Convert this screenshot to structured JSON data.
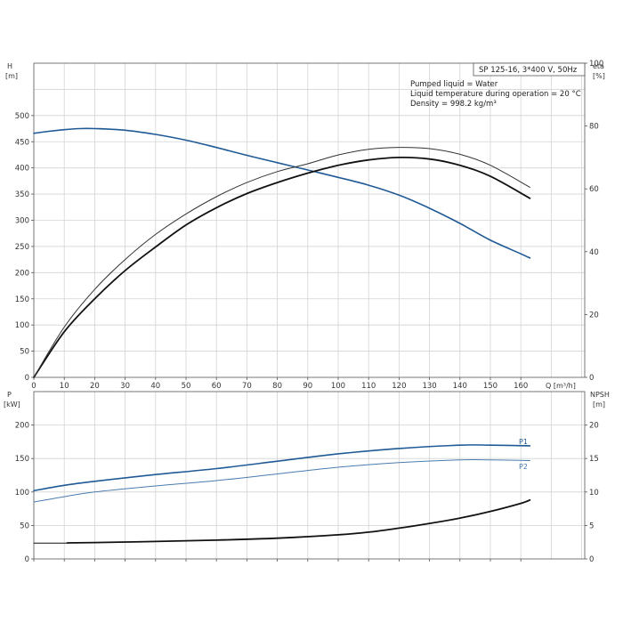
{
  "chart_data": [
    {
      "type": "line",
      "info_box": {
        "model": "SP 125-16, 3*400 V, 50Hz",
        "lines": [
          "Pumped liquid = Water",
          "Liquid temperature during operation = 20 °C",
          "Density = 998.2 kg/m³"
        ]
      },
      "xlabel": "Q [m³/h]",
      "ylabel_left": [
        "H",
        "[m]"
      ],
      "ylabel_right": [
        "eta",
        "[%]"
      ],
      "xlim": [
        0,
        181
      ],
      "ylim_left": [
        0,
        600
      ],
      "ylim_right": [
        0,
        100
      ],
      "x_ticks": [
        0,
        10,
        20,
        30,
        40,
        50,
        60,
        70,
        80,
        90,
        100,
        110,
        120,
        130,
        140,
        150,
        160
      ],
      "y_ticks_left": [
        0,
        50,
        100,
        150,
        200,
        250,
        300,
        350,
        400,
        450,
        500
      ],
      "y_ticks_right": [
        0,
        20,
        40,
        60,
        80,
        100
      ],
      "grid": true,
      "colors": {
        "head": "#1f5a96",
        "eta": "#111111",
        "eta_thin": "#333333"
      },
      "series": [
        {
          "axis": "left",
          "x": [
            0,
            5,
            10,
            15,
            20,
            30,
            40,
            50,
            60,
            70,
            80,
            90,
            100,
            110,
            120,
            130,
            140,
            150,
            160,
            163
          ],
          "values": [
            466,
            470,
            473,
            475,
            475,
            472,
            464,
            453,
            439,
            424,
            410,
            396,
            382,
            367,
            348,
            323,
            294,
            262,
            236,
            228
          ]
        },
        {
          "axis": "right",
          "x": [
            0,
            10,
            20,
            30,
            40,
            50,
            60,
            70,
            80,
            90,
            100,
            110,
            120,
            130,
            140,
            150,
            163
          ],
          "values": [
            0,
            14.5,
            25,
            34,
            41.5,
            48.5,
            54,
            58.5,
            62,
            65,
            67.5,
            69.2,
            70,
            69.5,
            67.5,
            64,
            57
          ]
        },
        {
          "axis": "right",
          "x": [
            0,
            10,
            20,
            30,
            40,
            50,
            60,
            70,
            80,
            90,
            100,
            110,
            120,
            130,
            140,
            150,
            163
          ],
          "values": [
            0,
            16,
            28,
            37.5,
            45.5,
            52,
            57.5,
            62,
            65.5,
            68,
            70.8,
            72.6,
            73.2,
            72.8,
            71,
            67.5,
            60.5
          ]
        }
      ]
    },
    {
      "type": "line",
      "ylabel_left": [
        "P",
        "[kW]"
      ],
      "ylabel_right": [
        "NPSH",
        "[m]"
      ],
      "xlim": [
        0,
        181
      ],
      "ylim_left": [
        0,
        250
      ],
      "ylim_right": [
        0,
        25
      ],
      "x_ticks": [
        0,
        10,
        20,
        30,
        40,
        50,
        60,
        70,
        80,
        90,
        100,
        110,
        120,
        130,
        140,
        150,
        160
      ],
      "y_ticks_left": [
        0,
        50,
        100,
        150,
        200
      ],
      "y_ticks_right": [
        0,
        5,
        10,
        15,
        20
      ],
      "grid": true,
      "colors": {
        "p1": "#1f5a96",
        "p2": "#4a7cb0",
        "npsh": "#111111"
      },
      "series": [
        {
          "name": "P1",
          "axis": "left",
          "x": [
            0,
            10,
            20,
            40,
            60,
            80,
            100,
            120,
            140,
            150,
            163
          ],
          "values": [
            102,
            110,
            116,
            126,
            135,
            146,
            157,
            165,
            170,
            170,
            169
          ]
        },
        {
          "name": "P2",
          "axis": "left",
          "x": [
            0,
            10,
            20,
            40,
            60,
            80,
            100,
            120,
            140,
            150,
            163
          ],
          "values": [
            85,
            93,
            100,
            109,
            117,
            127,
            137,
            144,
            148,
            148,
            147
          ]
        },
        {
          "axis": "left",
          "x": [
            0,
            11
          ],
          "values": [
            23.5,
            23.5
          ]
        },
        {
          "axis": "right",
          "x": [
            11,
            20,
            40,
            60,
            80,
            100,
            110,
            120,
            130,
            140,
            150,
            160,
            163
          ],
          "values": [
            2.4,
            2.45,
            2.6,
            2.8,
            3.1,
            3.6,
            4.0,
            4.6,
            5.3,
            6.1,
            7.1,
            8.3,
            8.8
          ]
        }
      ]
    }
  ]
}
